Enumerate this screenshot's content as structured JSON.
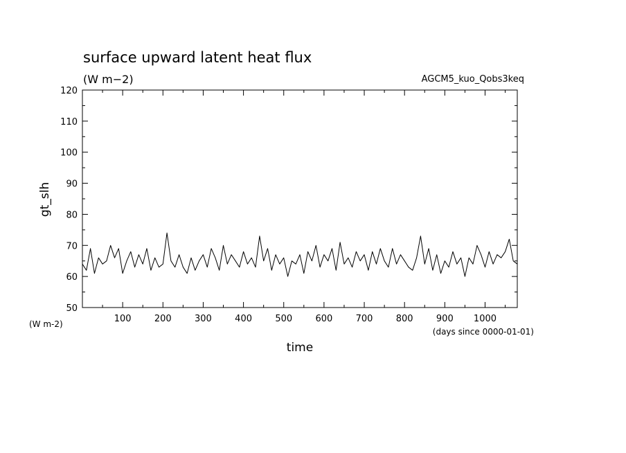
{
  "chart_data": {
    "type": "line",
    "title": "surface upward latent heat flux",
    "subtitle": "(W m−2)",
    "experiment": "AGCM5_kuo_Qobs3keq",
    "ylabel": "gt_slh",
    "yunit": "(W m-2)",
    "xlabel": "time",
    "xunit": "(days since 0000-01-01)",
    "xlim": [
      0,
      1080
    ],
    "ylim": [
      50,
      120
    ],
    "xticks": [
      100,
      200,
      300,
      400,
      500,
      600,
      700,
      800,
      900,
      1000
    ],
    "yticks": [
      50,
      60,
      70,
      80,
      90,
      100,
      110,
      120
    ],
    "grid": false,
    "line_color": "#000000",
    "series": [
      {
        "x": [
          0,
          10,
          20,
          30,
          40,
          50,
          60,
          70,
          80,
          90,
          100,
          110,
          120,
          130,
          140,
          150,
          160,
          170,
          180,
          190,
          200,
          210,
          220,
          230,
          240,
          250,
          260,
          270,
          280,
          290,
          300,
          310,
          320,
          330,
          340,
          350,
          360,
          370,
          380,
          390,
          400,
          410,
          420,
          430,
          440,
          450,
          460,
          470,
          480,
          490,
          500,
          510,
          520,
          530,
          540,
          550,
          560,
          570,
          580,
          590,
          600,
          610,
          620,
          630,
          640,
          650,
          660,
          670,
          680,
          690,
          700,
          710,
          720,
          730,
          740,
          750,
          760,
          770,
          780,
          790,
          800,
          810,
          820,
          830,
          840,
          850,
          860,
          870,
          880,
          890,
          900,
          910,
          920,
          930,
          940,
          950,
          960,
          970,
          980,
          990,
          1000,
          1010,
          1020,
          1030,
          1040,
          1050,
          1060,
          1070,
          1080
        ],
        "values": [
          64,
          62,
          69,
          61,
          66,
          64,
          65,
          70,
          66,
          69,
          61,
          65,
          68,
          63,
          67,
          64,
          69,
          62,
          66,
          63,
          64,
          74,
          65,
          63,
          67,
          63,
          61,
          66,
          62,
          65,
          67,
          63,
          69,
          66,
          62,
          70,
          64,
          67,
          65,
          63,
          68,
          64,
          66,
          63,
          73,
          65,
          69,
          62,
          67,
          64,
          66,
          60,
          65,
          64,
          67,
          61,
          68,
          65,
          70,
          63,
          67,
          65,
          69,
          62,
          71,
          64,
          66,
          63,
          68,
          65,
          67,
          62,
          68,
          64,
          69,
          65,
          63,
          69,
          64,
          67,
          65,
          63,
          62,
          66,
          73,
          64,
          69,
          62,
          67,
          61,
          65,
          63,
          68,
          64,
          66,
          60,
          66,
          64,
          70,
          67,
          63,
          68,
          64,
          67,
          66,
          68,
          72,
          65,
          64
        ]
      }
    ]
  }
}
